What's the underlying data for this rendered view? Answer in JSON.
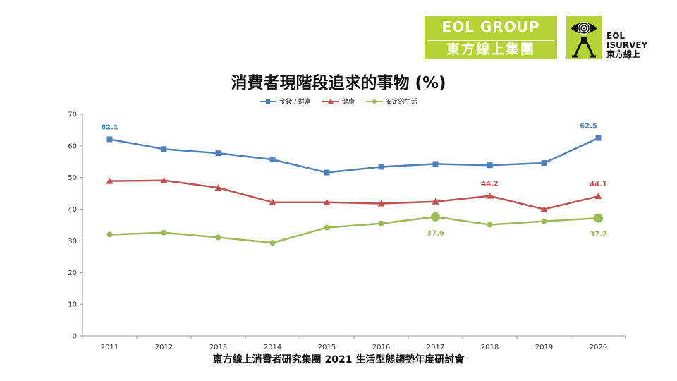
{
  "logos": {
    "group_line1": "EOL GROUP",
    "group_line2": "東方線上集團",
    "survey_line1": "EOL",
    "survey_line2": "ISURVEY",
    "survey_line3": "東方線上"
  },
  "footer": "東方線上消費者研究集團 2021 生活型態趨勢年度研討會",
  "colors": {
    "series1": "#4f81bd",
    "series2": "#c0504d",
    "series3": "#9bbb59",
    "logo_green": "#b5d334"
  },
  "chart_data": {
    "type": "line",
    "title": "消費者現階段追求的事物 (%)",
    "x": [
      "2011",
      "2012",
      "2013",
      "2014",
      "2015",
      "2016",
      "2017",
      "2018",
      "2019",
      "2020"
    ],
    "ylim": [
      0,
      70
    ],
    "yticks": [
      0,
      10,
      20,
      30,
      40,
      50,
      60,
      70
    ],
    "grid": false,
    "legend_position": "top",
    "series": [
      {
        "name": "金錢 / 財富",
        "marker": "square",
        "color": "#4f81bd",
        "values": [
          62.1,
          59.0,
          57.7,
          55.7,
          51.6,
          53.4,
          54.3,
          53.9,
          54.6,
          62.5
        ],
        "labels": [
          {
            "index": 0,
            "text": "62.1"
          },
          {
            "index": 9,
            "text": "62.5"
          }
        ]
      },
      {
        "name": "健康",
        "marker": "triangle",
        "color": "#c0504d",
        "values": [
          48.9,
          49.1,
          46.8,
          42.2,
          42.2,
          41.8,
          42.4,
          44.2,
          40.0,
          44.1
        ],
        "labels": [
          {
            "index": 7,
            "text": "44.2"
          },
          {
            "index": 9,
            "text": "44.1"
          }
        ]
      },
      {
        "name": "安定的生活",
        "marker": "circle",
        "color": "#9bbb59",
        "values": [
          32.0,
          32.6,
          31.1,
          29.4,
          34.2,
          35.5,
          37.6,
          35.1,
          36.2,
          37.2
        ],
        "labels": [
          {
            "index": 6,
            "text": "37.6"
          },
          {
            "index": 9,
            "text": "37.2"
          }
        ],
        "highlight": [
          6,
          9
        ]
      }
    ]
  }
}
